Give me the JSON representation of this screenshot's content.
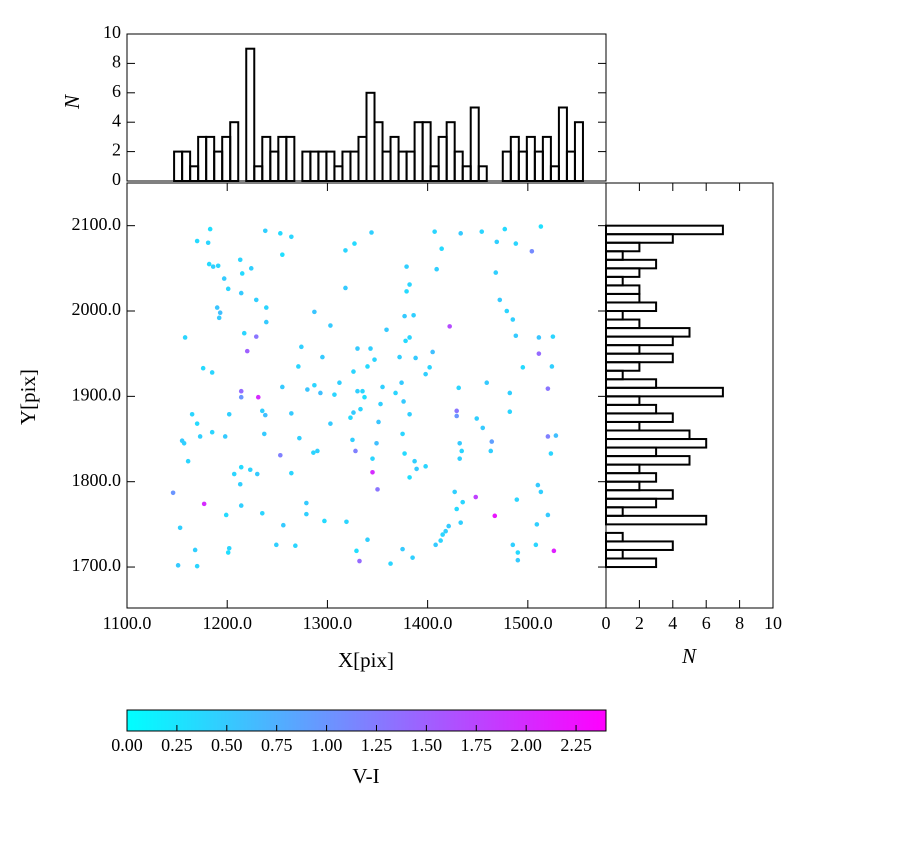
{
  "chart_data": [
    {
      "type": "scatter",
      "xlabel": "X[pix]",
      "ylabel": "Y[pix]",
      "xlim": [
        1100,
        1578
      ],
      "ylim": [
        1652,
        2150
      ],
      "xticks": [
        {
          "value": 1100,
          "label": "1100.0"
        },
        {
          "value": 1200,
          "label": "1200.0"
        },
        {
          "value": 1300,
          "label": "1300.0"
        },
        {
          "value": 1400,
          "label": "1400.0"
        },
        {
          "value": 1500,
          "label": "1500.0"
        }
      ],
      "yticks": [
        {
          "value": 1700,
          "label": "1700.0"
        },
        {
          "value": 1800,
          "label": "1800.0"
        },
        {
          "value": 1900,
          "label": "1900.0"
        },
        {
          "value": 2000,
          "label": "2000.0"
        },
        {
          "value": 2100,
          "label": "2100.0"
        }
      ],
      "x": [
        1170,
        1183,
        1181,
        1182,
        1186,
        1191,
        1197,
        1190,
        1193,
        1192,
        1213,
        1215,
        1224,
        1201,
        1214,
        1238,
        1253,
        1264,
        1255,
        1229,
        1239,
        1239,
        1217,
        1220,
        1229,
        1158,
        1176,
        1185,
        1214,
        1214,
        1231,
        1255,
        1271,
        1274,
        1287,
        1303,
        1318,
        1327,
        1344,
        1318,
        1295,
        1280,
        1287,
        1293,
        1307,
        1312,
        1326,
        1330,
        1343,
        1340,
        1335,
        1330,
        1326,
        1323,
        1333,
        1337,
        1355,
        1347,
        1359,
        1372,
        1378,
        1374,
        1368,
        1353,
        1351,
        1349,
        1328,
        1345,
        1345,
        1350,
        1379,
        1382,
        1379,
        1377,
        1386,
        1382,
        1388,
        1398,
        1405,
        1402,
        1376,
        1382,
        1375,
        1377,
        1387,
        1389,
        1398,
        1382,
        1407,
        1409,
        1414,
        1422,
        1433,
        1454,
        1477,
        1469,
        1488,
        1504,
        1513,
        1468,
        1472,
        1479,
        1485,
        1488,
        1511,
        1525,
        1511,
        1524,
        1495,
        1520,
        1482,
        1459,
        1431,
        1429,
        1429,
        1449,
        1455,
        1482,
        1464,
        1463,
        1432,
        1434,
        1432,
        1520,
        1528,
        1523,
        1510,
        1513,
        1489,
        1509,
        1520,
        1508,
        1526,
        1485,
        1490,
        1490,
        1467,
        1448,
        1427,
        1435,
        1429,
        1433,
        1421,
        1415,
        1418,
        1408,
        1413,
        1385,
        1375,
        1363,
        1329,
        1332,
        1340,
        1319,
        1297,
        1279,
        1279,
        1268,
        1249,
        1256,
        1235,
        1214,
        1199,
        1202,
        1201,
        1177,
        1168,
        1170,
        1151,
        1153,
        1146,
        1161,
        1155,
        1157,
        1165,
        1170,
        1173,
        1185,
        1198,
        1202,
        1207,
        1214,
        1213,
        1223,
        1230,
        1235,
        1238,
        1237,
        1253,
        1264,
        1272,
        1264,
        1286,
        1290,
        1303,
        1325
      ],
      "values": [
        2082,
        2096,
        2080,
        2055,
        2052,
        2053,
        2038,
        2004,
        1998,
        1992,
        2060,
        2044,
        2050,
        2026,
        2021,
        2094,
        2091,
        2087,
        2066,
        2013,
        2004,
        1987,
        1974,
        1953,
        1970,
        1969,
        1933,
        1928,
        1906,
        1899,
        1899,
        1911,
        1935,
        1958,
        1999,
        1983,
        2071,
        2079,
        2092,
        2027,
        1946,
        1908,
        1913,
        1904,
        1902,
        1916,
        1929,
        1956,
        1956,
        1935,
        1906,
        1906,
        1881,
        1875,
        1885,
        1899,
        1911,
        1943,
        1978,
        1946,
        1965,
        1916,
        1904,
        1891,
        1870,
        1845,
        1836,
        1827,
        1811,
        1791,
        2052,
        2031,
        2023,
        1994,
        1995,
        1969,
        1945,
        1926,
        1952,
        1934,
        1894,
        1879,
        1856,
        1833,
        1824,
        1815,
        1818,
        1805,
        2093,
        2049,
        2073,
        1982,
        2091,
        2093,
        2096,
        2081,
        2079,
        2070,
        2099,
        2045,
        2013,
        2000,
        1990,
        1971,
        1969,
        1970,
        1950,
        1935,
        1934,
        1909,
        1904,
        1916,
        1910,
        1883,
        1877,
        1874,
        1863,
        1882,
        1847,
        1836,
        1845,
        1836,
        1827,
        1853,
        1854,
        1833,
        1796,
        1788,
        1779,
        1750,
        1761,
        1726,
        1719,
        1726,
        1708,
        1717,
        1760,
        1782,
        1788,
        1776,
        1768,
        1752,
        1748,
        1738,
        1742,
        1726,
        1731,
        1711,
        1721,
        1704,
        1719,
        1707,
        1732,
        1753,
        1754,
        1775,
        1762,
        1725,
        1726,
        1749,
        1763,
        1772,
        1761,
        1722,
        1717,
        1774,
        1720,
        1701,
        1702,
        1746,
        1787,
        1824,
        1848,
        1845,
        1879,
        1868,
        1853,
        1858,
        1853,
        1879,
        1809,
        1817,
        1797,
        1814,
        1809,
        1883,
        1878,
        1856,
        1831,
        1810,
        1851,
        1880,
        1834,
        1836,
        1868,
        1849
      ],
      "color_values": [
        0.35,
        0.3,
        0.4,
        0.35,
        0.45,
        0.4,
        0.5,
        0.55,
        0.6,
        0.5,
        0.4,
        0.35,
        0.45,
        0.4,
        0.5,
        0.45,
        0.35,
        0.4,
        0.3,
        0.45,
        0.4,
        0.5,
        0.4,
        1.5,
        1.3,
        0.4,
        0.35,
        0.4,
        1.4,
        1.0,
        2.0,
        0.5,
        0.4,
        0.45,
        0.55,
        0.5,
        0.4,
        0.35,
        0.45,
        0.5,
        0.5,
        0.55,
        0.4,
        0.6,
        0.4,
        0.45,
        0.4,
        0.5,
        0.45,
        0.35,
        0.4,
        0.45,
        0.5,
        0.35,
        0.4,
        0.3,
        0.45,
        0.4,
        0.5,
        0.45,
        0.35,
        0.5,
        0.4,
        0.45,
        0.55,
        0.6,
        1.2,
        0.4,
        2.0,
        1.3,
        0.45,
        0.4,
        0.35,
        0.5,
        0.45,
        0.4,
        0.5,
        0.45,
        0.6,
        0.4,
        0.5,
        0.45,
        0.4,
        0.35,
        0.45,
        0.5,
        0.4,
        0.3,
        0.4,
        0.45,
        0.35,
        1.7,
        0.5,
        0.4,
        0.35,
        0.45,
        0.4,
        1.1,
        0.3,
        0.45,
        0.5,
        0.4,
        0.45,
        0.5,
        0.55,
        0.4,
        1.4,
        0.45,
        0.35,
        1.3,
        0.45,
        0.5,
        0.4,
        1.3,
        1.0,
        0.45,
        0.5,
        0.4,
        0.9,
        0.45,
        0.5,
        0.4,
        0.45,
        1.2,
        0.6,
        0.4,
        0.5,
        0.45,
        0.4,
        0.45,
        0.5,
        0.4,
        2.1,
        0.45,
        0.5,
        0.35,
        2.2,
        1.8,
        0.45,
        0.4,
        0.35,
        0.45,
        0.5,
        0.4,
        0.45,
        0.5,
        0.4,
        0.45,
        0.5,
        0.4,
        0.3,
        1.4,
        0.45,
        0.4,
        0.35,
        0.5,
        0.45,
        0.4,
        0.45,
        0.5,
        0.4,
        0.45,
        0.35,
        0.4,
        0.3,
        2.0,
        0.45,
        0.4,
        0.5,
        0.45,
        1.0,
        0.4,
        0.5,
        0.45,
        0.4,
        0.35,
        0.45,
        0.4,
        0.5,
        0.45,
        0.4,
        0.35,
        0.45,
        0.4,
        0.5,
        0.45,
        0.6,
        0.5,
        1.2,
        0.4,
        0.45,
        0.5,
        0.4,
        0.45,
        0.5,
        0.45
      ],
      "colorbar": {
        "label": "V-I",
        "lim": [
          0,
          2.4
        ],
        "colors": [
          "#00ffff",
          "#ff00ff"
        ],
        "ticks": [
          {
            "value": 0,
            "label": "0.00"
          },
          {
            "value": 0.25,
            "label": "0.25"
          },
          {
            "value": 0.5,
            "label": "0.50"
          },
          {
            "value": 0.75,
            "label": "0.75"
          },
          {
            "value": 1,
            "label": "1.00"
          },
          {
            "value": 1.25,
            "label": "1.25"
          },
          {
            "value": 1.5,
            "label": "1.50"
          },
          {
            "value": 1.75,
            "label": "1.75"
          },
          {
            "value": 2,
            "label": "2.00"
          },
          {
            "value": 2.25,
            "label": "2.25"
          }
        ]
      }
    },
    {
      "type": "histogram",
      "orientation": "vertical",
      "ylabel": "N",
      "color": "#000000",
      "xlim": [
        1100,
        1578
      ],
      "ylim": [
        0,
        10
      ],
      "yticks": [
        0,
        2,
        4,
        6,
        8,
        10
      ],
      "bins": [
        1147,
        1155,
        1163,
        1171,
        1179,
        1187,
        1195,
        1203,
        1211,
        1219,
        1227,
        1235,
        1243,
        1251,
        1259,
        1267,
        1275,
        1283,
        1291,
        1299,
        1307,
        1315,
        1323,
        1331,
        1339,
        1347,
        1355,
        1363,
        1371,
        1379,
        1387,
        1395,
        1403,
        1411,
        1419,
        1427,
        1435,
        1443,
        1451,
        1459,
        1467,
        1475,
        1483,
        1491,
        1499,
        1507,
        1515,
        1523,
        1531,
        1539,
        1547,
        1555
      ],
      "values": [
        2,
        2,
        1,
        3,
        3,
        2,
        3,
        4,
        0,
        9,
        1,
        3,
        2,
        3,
        3,
        0,
        2,
        2,
        2,
        2,
        1,
        2,
        2,
        3,
        6,
        4,
        2,
        3,
        2,
        2,
        4,
        4,
        1,
        3,
        4,
        2,
        1,
        5,
        1,
        0,
        0,
        2,
        3,
        2,
        3,
        2,
        3,
        1,
        5,
        2,
        4
      ]
    },
    {
      "type": "histogram",
      "orientation": "horizontal",
      "xlabel": "N",
      "color": "#000000",
      "xlim": [
        0,
        10
      ],
      "xticks": [
        0,
        2,
        4,
        6,
        8,
        10
      ],
      "ylim": [
        1652,
        2150
      ],
      "bins": [
        1700,
        1710,
        1720,
        1730,
        1740,
        1750,
        1760,
        1770,
        1780,
        1790,
        1800,
        1810,
        1820,
        1830,
        1840,
        1850,
        1860,
        1870,
        1880,
        1890,
        1900,
        1910,
        1920,
        1930,
        1940,
        1950,
        1960,
        1970,
        1980,
        1990,
        2000,
        2010,
        2020,
        2030,
        2040,
        2050,
        2060,
        2070,
        2080,
        2090,
        2100
      ],
      "values": [
        3,
        1,
        4,
        1,
        0,
        6,
        1,
        3,
        4,
        2,
        3,
        2,
        5,
        3,
        6,
        5,
        2,
        4,
        3,
        2,
        7,
        3,
        1,
        2,
        4,
        2,
        4,
        5,
        2,
        1,
        3,
        2,
        2,
        1,
        2,
        3,
        1,
        2,
        4,
        7
      ]
    }
  ]
}
